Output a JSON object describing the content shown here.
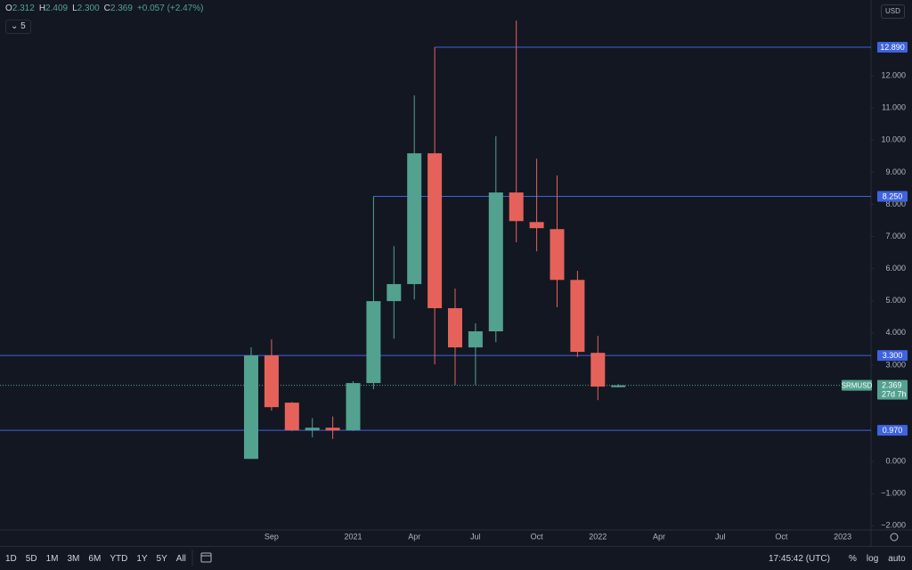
{
  "chart_data": {
    "type": "candlestick",
    "header": {
      "labels": [
        "O",
        "H",
        "L",
        "C"
      ],
      "values": [
        "2.312",
        "2.409",
        "2.300",
        "2.369"
      ],
      "change": "+0.057 (+2.47%)"
    },
    "interval": "5",
    "currency": "USD",
    "categories": [
      null,
      "Sep",
      null,
      null,
      null,
      "2021",
      null,
      null,
      "Apr",
      null,
      null,
      "Jul",
      null,
      null,
      "Oct",
      null,
      null,
      "2022",
      null,
      null,
      "Apr",
      null,
      null,
      "Jul",
      null,
      null,
      "Oct",
      null,
      null,
      "2023"
    ],
    "open": [
      0.08,
      3.3,
      1.83,
      0.97,
      1.05,
      0.97,
      2.44,
      4.99,
      5.52,
      9.59,
      4.77,
      3.55,
      4.05,
      8.37,
      7.45,
      7.23,
      5.65,
      3.38,
      2.312,
      null,
      null,
      null,
      null,
      null,
      null,
      null,
      null,
      null,
      null,
      null
    ],
    "high": [
      3.55,
      3.8,
      1.85,
      1.35,
      1.4,
      2.5,
      8.25,
      6.7,
      11.39,
      12.89,
      5.38,
      4.3,
      10.12,
      13.72,
      9.42,
      8.9,
      5.93,
      3.91,
      2.409,
      null,
      null,
      null,
      null,
      null,
      null,
      null,
      null,
      null,
      null,
      null
    ],
    "low": [
      0.08,
      1.58,
      0.95,
      0.75,
      0.7,
      0.95,
      2.25,
      3.82,
      5.04,
      3.02,
      2.38,
      2.38,
      3.71,
      6.82,
      6.54,
      4.8,
      3.25,
      1.91,
      2.3,
      null,
      null,
      null,
      null,
      null,
      null,
      null,
      null,
      null,
      null,
      null
    ],
    "close": [
      3.3,
      1.69,
      0.97,
      1.05,
      0.97,
      2.44,
      4.99,
      5.52,
      9.59,
      4.77,
      3.55,
      4.05,
      8.37,
      7.48,
      7.26,
      5.65,
      3.41,
      2.33,
      2.369,
      null,
      null,
      null,
      null,
      null,
      null,
      null,
      null,
      null,
      null,
      null
    ],
    "up_color": "#53a18f",
    "down_color": "#e5625a",
    "ylim": [
      -2.13,
      14.36
    ],
    "yticks": [
      {
        "value": 12,
        "label": "12.000"
      },
      {
        "value": 11,
        "label": "11.000"
      },
      {
        "value": 10,
        "label": "10.000"
      },
      {
        "value": 9,
        "label": "9.000"
      },
      {
        "value": 8,
        "label": "8.000"
      },
      {
        "value": 7,
        "label": "7.000"
      },
      {
        "value": 6,
        "label": "6.000"
      },
      {
        "value": 5,
        "label": "5.000"
      },
      {
        "value": 4,
        "label": "4.000"
      },
      {
        "value": 3,
        "label": "3.000"
      },
      {
        "value": 0,
        "label": "0.000"
      },
      {
        "value": -1,
        "label": "−1.000"
      },
      {
        "value": -2,
        "label": "−2.000"
      }
    ],
    "hlines": [
      {
        "value": 12.89,
        "label": "12.890",
        "from": 9
      },
      {
        "value": 8.25,
        "label": "8.250",
        "from": 6
      },
      {
        "value": 3.3,
        "label": "3.300"
      },
      {
        "value": 0.97,
        "label": "0.970"
      }
    ],
    "hline_color": "#3e63dd",
    "last": {
      "symbol": "SRMUSD",
      "value": 2.369,
      "label": "2.369",
      "countdown": "27d 7h"
    },
    "toolbar": {
      "ranges": [
        "1D",
        "5D",
        "1M",
        "3M",
        "6M",
        "YTD",
        "1Y",
        "5Y",
        "All"
      ],
      "time": "17:45:42 (UTC)",
      "options": [
        "%",
        "log",
        "auto"
      ]
    }
  }
}
